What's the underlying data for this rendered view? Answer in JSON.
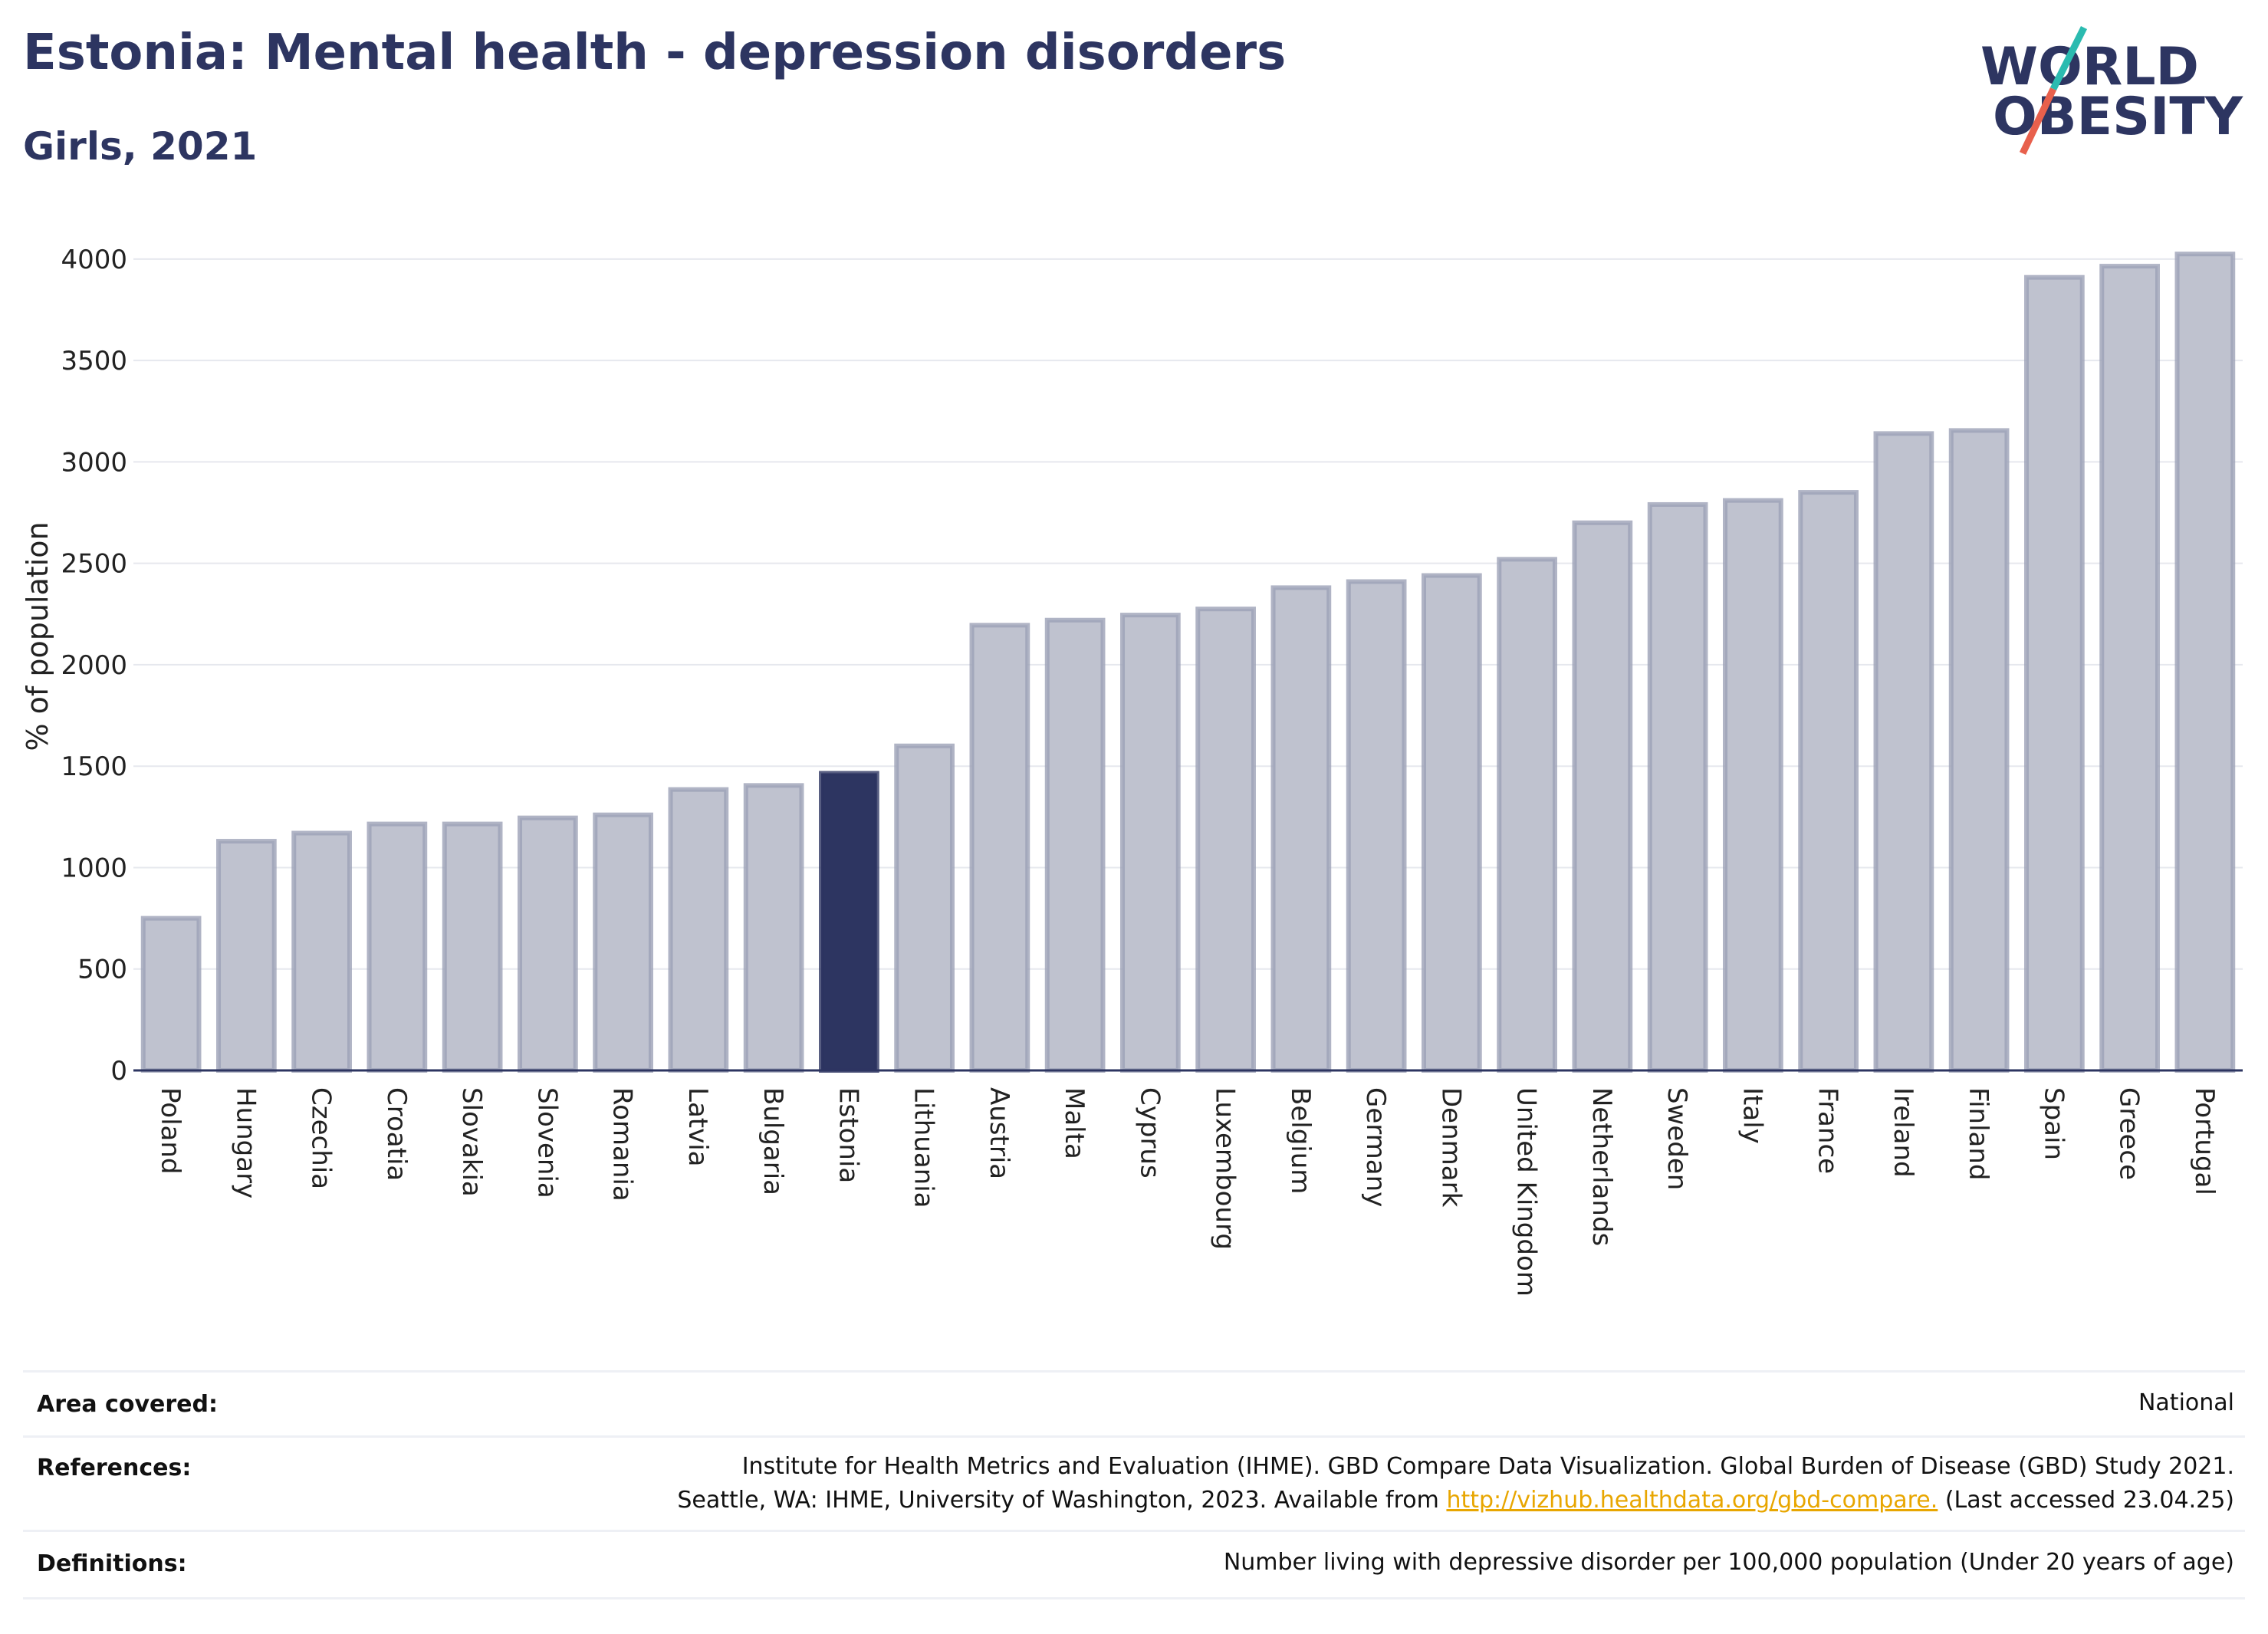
{
  "chart_data": {
    "type": "bar",
    "title": "Estonia: Mental health - depression disorders",
    "subtitle": "Girls, 2021",
    "y_label": "% of population",
    "categories": [
      "Poland",
      "Hungary",
      "Czechia",
      "Croatia",
      "Slovakia",
      "Slovenia",
      "Romania",
      "Latvia",
      "Bulgaria",
      "Estonia",
      "Lithuania",
      "Austria",
      "Malta",
      "Cyprus",
      "Luxembourg",
      "Belgium",
      "Germany",
      "Denmark",
      "United Kingdom",
      "Netherlands",
      "Sweden",
      "Italy",
      "France",
      "Ireland",
      "Finland",
      "Spain",
      "Greece",
      "Portugal"
    ],
    "values": [
      750,
      1130,
      1170,
      1215,
      1215,
      1245,
      1260,
      1385,
      1405,
      1465,
      1600,
      2195,
      2220,
      2245,
      2275,
      2380,
      2410,
      2440,
      2520,
      2700,
      2790,
      2810,
      2850,
      3140,
      3155,
      3910,
      3965,
      4025
    ],
    "colors": [
      "#bfc2cf",
      "#bfc2cf",
      "#bfc2cf",
      "#bfc2cf",
      "#bfc2cf",
      "#bfc2cf",
      "#bfc2cf",
      "#bfc2cf",
      "#bfc2cf",
      "#2d3561",
      "#bfc2cf",
      "#bfc2cf",
      "#bfc2cf",
      "#bfc2cf",
      "#bfc2cf",
      "#bfc2cf",
      "#bfc2cf",
      "#bfc2cf",
      "#bfc2cf",
      "#bfc2cf",
      "#bfc2cf",
      "#bfc2cf",
      "#bfc2cf",
      "#bfc2cf",
      "#bfc2cf",
      "#bfc2cf",
      "#bfc2cf",
      "#bfc2cf"
    ],
    "ylim": [
      0,
      4060
    ],
    "yticks": [
      0,
      500,
      1000,
      1500,
      2000,
      2500,
      3000,
      3500,
      4000
    ],
    "grid": true
  },
  "logo": {
    "line1": "WORLD",
    "line2": "OBESITY"
  },
  "footer": {
    "area": {
      "label": "Area covered:",
      "value": "National"
    },
    "references": {
      "label": "References:",
      "line1": "Institute for Health Metrics and Evaluation (IHME). GBD Compare Data Visualization. Global Burden of Disease (GBD) Study 2021.",
      "line2": "Seattle, WA: IHME, University of Washington, 2023. Available from",
      "link": "http://vizhub.healthdata.org/gbd-compare.",
      "suffix": "(Last accessed 23.04.25)"
    },
    "definitions": {
      "label": "Definitions:",
      "value": "Number living with depressive disorder per 100,000 population (Under 20 years of age)"
    }
  }
}
